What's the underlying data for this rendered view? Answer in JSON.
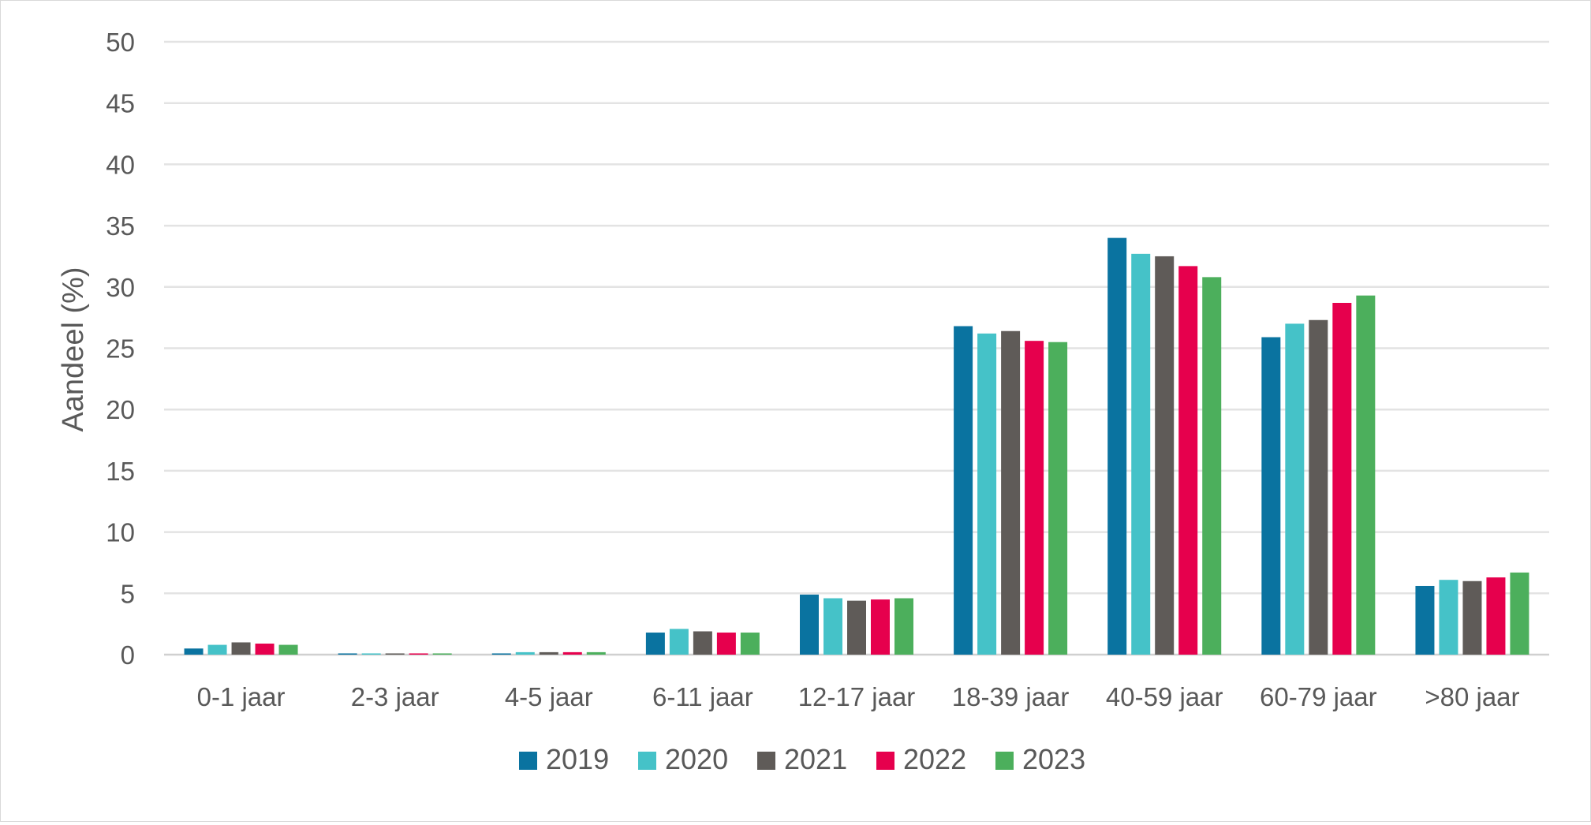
{
  "chart_data": {
    "type": "bar",
    "title": "",
    "xlabel": "",
    "ylabel": "Aandeel (%)",
    "ylim": [
      0,
      50
    ],
    "yticks": [
      0,
      5,
      10,
      15,
      20,
      25,
      30,
      35,
      40,
      45,
      50
    ],
    "grid": true,
    "legend_position": "bottom",
    "categories": [
      "0-1 jaar",
      "2-3 jaar",
      "4-5 jaar",
      "6-11 jaar",
      "12-17 jaar",
      "18-39 jaar",
      "40-59 jaar",
      "60-79 jaar",
      ">80 jaar"
    ],
    "series": [
      {
        "name": "2019",
        "color": "#0a73a0",
        "values": [
          0.5,
          0.1,
          0.1,
          1.8,
          4.9,
          26.8,
          34.0,
          25.9,
          5.6
        ]
      },
      {
        "name": "2020",
        "color": "#45c2c8",
        "values": [
          0.8,
          0.1,
          0.2,
          2.1,
          4.6,
          26.2,
          32.7,
          27.0,
          6.1
        ]
      },
      {
        "name": "2021",
        "color": "#5f5b58",
        "values": [
          1.0,
          0.1,
          0.2,
          1.9,
          4.4,
          26.4,
          32.5,
          27.3,
          6.0
        ]
      },
      {
        "name": "2022",
        "color": "#e6004d",
        "values": [
          0.9,
          0.1,
          0.2,
          1.8,
          4.5,
          25.6,
          31.7,
          28.7,
          6.3
        ]
      },
      {
        "name": "2023",
        "color": "#4caf5c",
        "values": [
          0.8,
          0.1,
          0.2,
          1.8,
          4.6,
          25.5,
          30.8,
          29.3,
          6.7
        ]
      }
    ]
  }
}
